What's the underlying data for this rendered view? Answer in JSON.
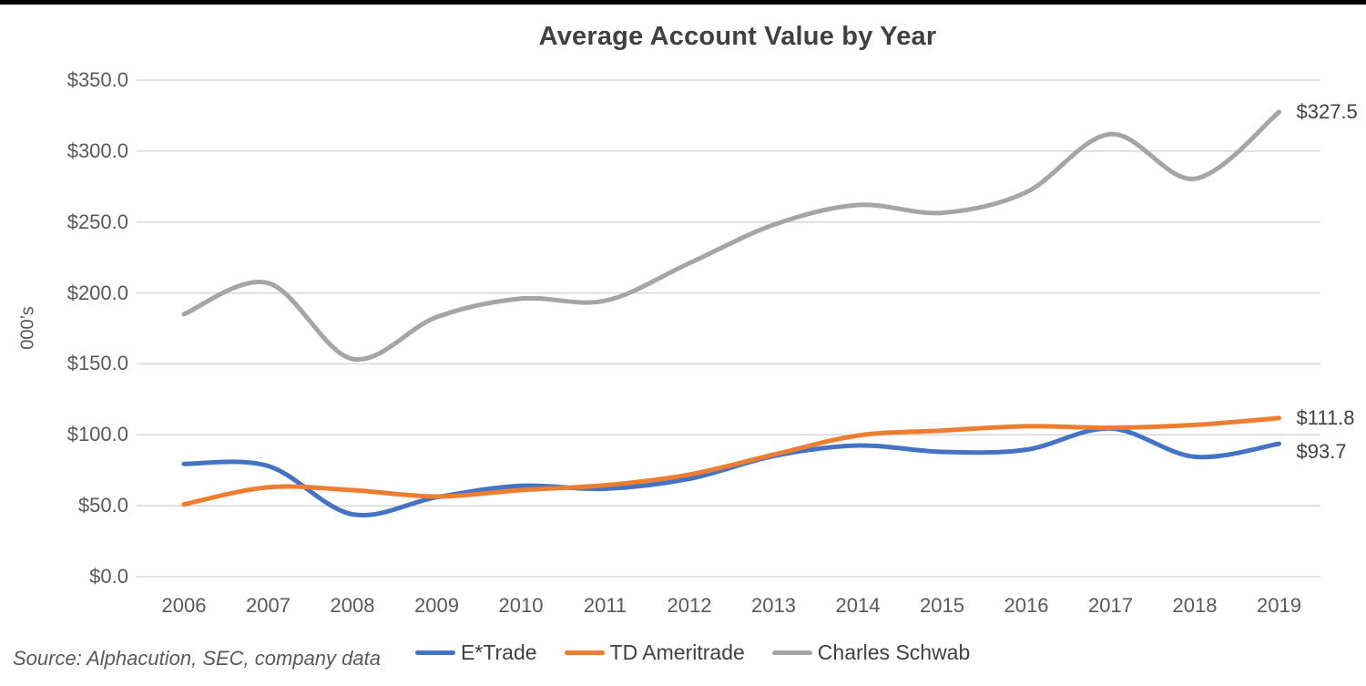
{
  "page": {
    "background": "#ffffff",
    "top_bar_color": "#000000"
  },
  "chart_data": {
    "type": "line",
    "title": "Average Account Value by Year",
    "y_axis_label": "000’s",
    "ylim": [
      0,
      350
    ],
    "y_tick_step": 50,
    "y_tick_labels": [
      "$0.0",
      "$50.0",
      "$100.0",
      "$150.0",
      "$200.0",
      "$250.0",
      "$300.0",
      "$350.0"
    ],
    "grid": true,
    "gridline_color": "#D9D9D9",
    "tick_label_color": "#595959",
    "categories": [
      2006,
      2007,
      2008,
      2009,
      2010,
      2011,
      2012,
      2013,
      2014,
      2015,
      2016,
      2017,
      2018,
      2019
    ],
    "series": [
      {
        "name": "E*Trade",
        "color": "#4472C4",
        "values": [
          79.5,
          78.0,
          44.0,
          56.0,
          64.0,
          62.0,
          69.0,
          85.0,
          92.5,
          88.0,
          89.5,
          104.5,
          84.5,
          93.7
        ],
        "end_label": "$93.7",
        "end_label_dy": 9
      },
      {
        "name": "TD Ameritrade",
        "color": "#ED7D31",
        "values": [
          51.0,
          63.0,
          61.0,
          56.5,
          61.0,
          64.5,
          72.0,
          86.0,
          99.5,
          103.0,
          106.0,
          105.0,
          107.0,
          111.8
        ],
        "end_label": "$111.8",
        "end_label_dy": 0
      },
      {
        "name": "Charles Schwab",
        "color": "#A5A5A5",
        "values": [
          185.0,
          207.0,
          153.5,
          183.0,
          196.0,
          194.5,
          221.0,
          248.0,
          262.0,
          256.5,
          271.0,
          312.0,
          280.5,
          327.5
        ],
        "end_label": "$327.5",
        "end_label_dy": 0
      }
    ],
    "legend_position": "bottom",
    "smooth_lines": true,
    "source_note": "Source: Alphacution, SEC, company data"
  }
}
